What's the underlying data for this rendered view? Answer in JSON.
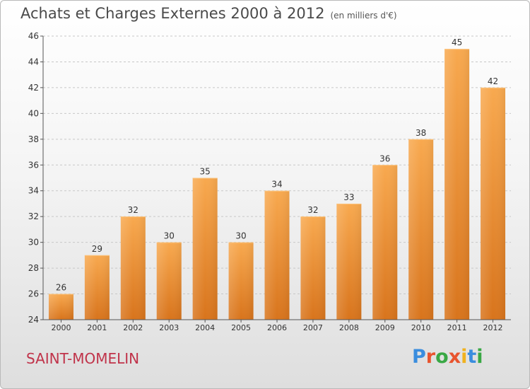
{
  "header": {
    "title": "Achats et Charges Externes 2000 à 2012",
    "unit": "(en milliers d'€)"
  },
  "footer": {
    "commune": "SAINT-MOMELIN",
    "logo_letters": [
      {
        "char": "P",
        "color": "#3a8dde"
      },
      {
        "char": "r",
        "color": "#e8542e"
      },
      {
        "char": "o",
        "color": "#39a845"
      },
      {
        "char": "x",
        "color": "#e8542e"
      },
      {
        "char": "i",
        "color": "#f0b21f"
      },
      {
        "char": "t",
        "color": "#3a8dde"
      },
      {
        "char": "i",
        "color": "#39a845"
      }
    ]
  },
  "colors": {
    "bar_light": "#f8a94f",
    "bar_dark": "#d8741c",
    "axis": "#555555",
    "grid": "#c8c8c8",
    "label": "#333333"
  },
  "chart_data": {
    "type": "bar",
    "title": "Achats et Charges Externes 2000 à 2012",
    "subtitle": "(en milliers d'€)",
    "xlabel": "",
    "ylabel": "",
    "categories": [
      "2000",
      "2001",
      "2002",
      "2003",
      "2004",
      "2005",
      "2006",
      "2007",
      "2008",
      "2009",
      "2010",
      "2011",
      "2012"
    ],
    "values": [
      26,
      29,
      32,
      30,
      35,
      30,
      34,
      32,
      33,
      36,
      38,
      45,
      42
    ],
    "ylim": [
      24,
      46
    ],
    "yticks": [
      24,
      26,
      28,
      30,
      32,
      34,
      36,
      38,
      40,
      42,
      44,
      46
    ],
    "grid": true,
    "data_labels": true
  }
}
